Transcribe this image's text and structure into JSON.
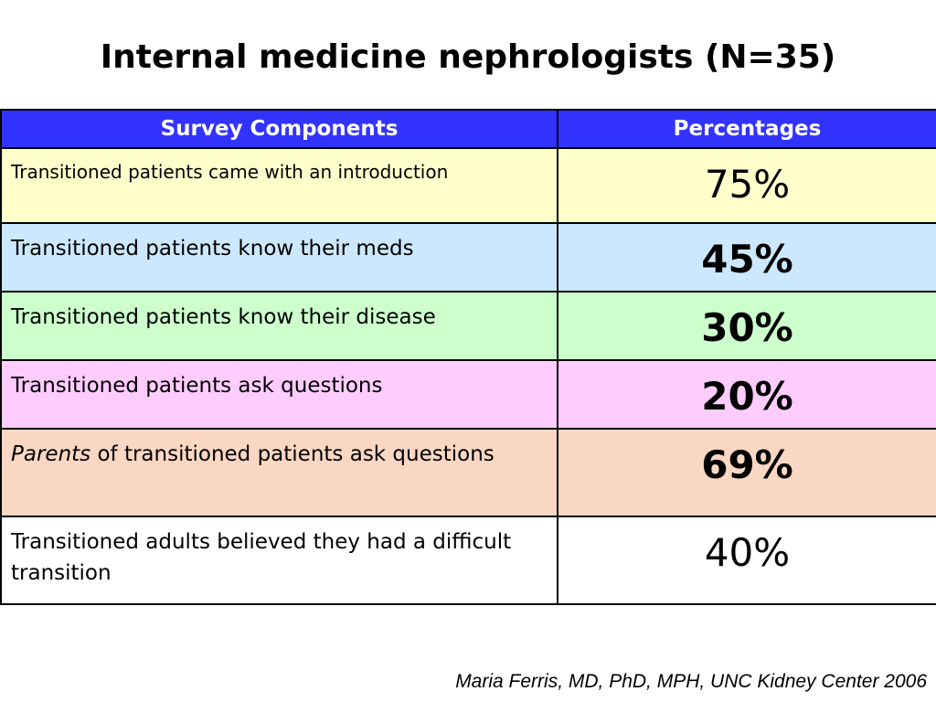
{
  "title": "Internal medicine nephrologists (N=35)",
  "table": {
    "headers": [
      "Survey Components",
      "Percentages"
    ],
    "header_color": "#3333ff",
    "rows": [
      {
        "component_italic": "",
        "component": "Transitioned patients came with an introduction",
        "percentage": "75%",
        "bold": false,
        "color": "#ffffcc"
      },
      {
        "component_italic": "",
        "component": "Transitioned patients know their meds",
        "percentage": "45%",
        "bold": true,
        "color": "#cce8ff"
      },
      {
        "component_italic": "",
        "component": "Transitioned patients know their disease",
        "percentage": "30%",
        "bold": true,
        "color": "#ccffcc"
      },
      {
        "component_italic": "",
        "component": "Transitioned patients ask questions",
        "percentage": "20%",
        "bold": true,
        "color": "#ffccff"
      },
      {
        "component_italic": "Parents",
        "component": " of transitioned patients ask questions",
        "percentage": "69%",
        "bold": true,
        "color": "#fad7c3"
      },
      {
        "component_italic": "",
        "component": "Transitioned adults believed they had a difficult transition",
        "percentage": "40%",
        "bold": false,
        "color": "#ffffff"
      }
    ]
  },
  "attribution": "Maria Ferris, MD, PhD, MPH, UNC Kidney Center 2006"
}
